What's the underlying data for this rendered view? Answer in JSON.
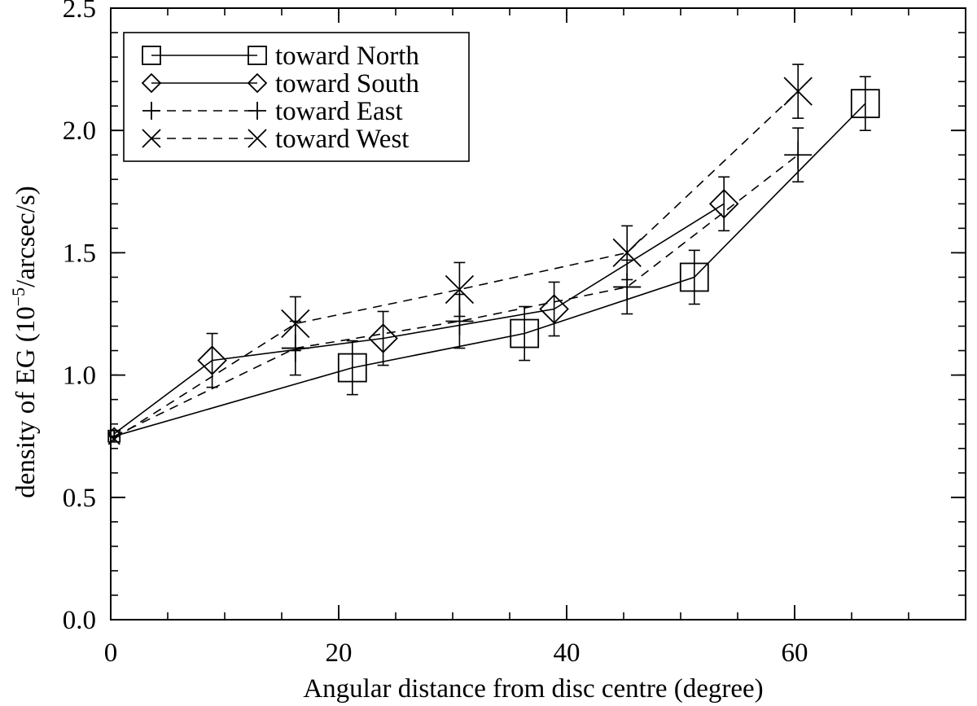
{
  "chart_data": {
    "type": "line",
    "xlabel": "Angular distance from disc centre (degree)",
    "ylabel_parts": [
      "density of EG (10",
      "−5",
      "/arcsec/s)"
    ],
    "xlim": [
      0,
      75
    ],
    "ylim": [
      0,
      2.5
    ],
    "x_ticks": [
      0,
      20,
      40,
      60
    ],
    "x_tick_labels": [
      "0",
      "20",
      "40",
      "60"
    ],
    "x_minor_step": 5,
    "y_ticks": [
      0,
      0.5,
      1.0,
      1.5,
      2.0,
      2.5
    ],
    "y_tick_labels": [
      "0.0",
      "0.5",
      "1.0",
      "1.5",
      "2.0",
      "2.5"
    ],
    "y_minor_step": 0.1,
    "grid": false,
    "legend_position": "top-left",
    "series": [
      {
        "name": "toward North",
        "marker": "square",
        "linestyle": "solid",
        "x": [
          0.3,
          21.2,
          36.3,
          51.2,
          66.2
        ],
        "y": [
          0.75,
          1.03,
          1.17,
          1.4,
          2.11
        ],
        "err": [
          0.0,
          0.11,
          0.11,
          0.11,
          0.11
        ]
      },
      {
        "name": "toward South",
        "marker": "diamond",
        "linestyle": "solid",
        "x": [
          0.3,
          8.9,
          23.9,
          38.9,
          53.8
        ],
        "y": [
          0.76,
          1.06,
          1.15,
          1.27,
          1.7
        ],
        "err": [
          0.0,
          0.11,
          0.11,
          0.11,
          0.11
        ]
      },
      {
        "name": "toward East",
        "marker": "plus",
        "linestyle": "dashed",
        "x": [
          0.3,
          16.2,
          30.6,
          45.3,
          60.3
        ],
        "y": [
          0.75,
          1.11,
          1.22,
          1.36,
          1.9
        ],
        "err": [
          0.0,
          0.11,
          0.11,
          0.11,
          0.11
        ]
      },
      {
        "name": "toward West",
        "marker": "cross",
        "linestyle": "dashed",
        "x": [
          0.3,
          16.2,
          30.6,
          45.3,
          60.3
        ],
        "y": [
          0.74,
          1.21,
          1.35,
          1.5,
          2.16
        ],
        "err": [
          0.0,
          0.11,
          0.11,
          0.11,
          0.11
        ]
      }
    ]
  }
}
